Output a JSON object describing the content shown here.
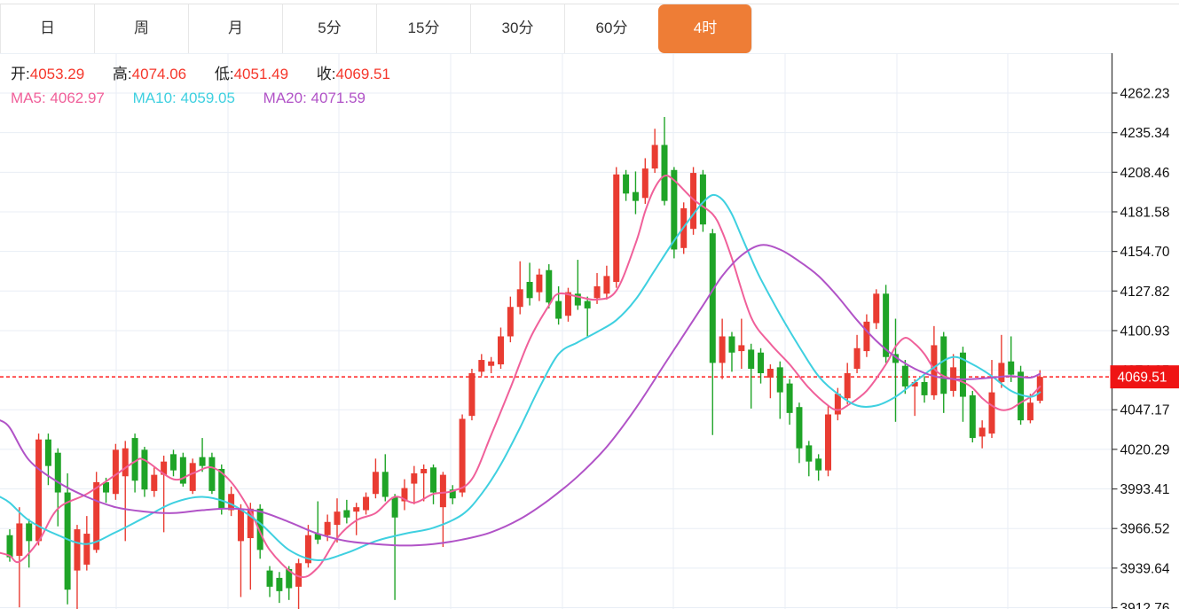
{
  "tabs": [
    {
      "label": "日",
      "active": false
    },
    {
      "label": "周",
      "active": false
    },
    {
      "label": "月",
      "active": false
    },
    {
      "label": "5分",
      "active": false
    },
    {
      "label": "15分",
      "active": false
    },
    {
      "label": "30分",
      "active": false
    },
    {
      "label": "60分",
      "active": false
    },
    {
      "label": "4时",
      "active": true
    }
  ],
  "legend": {
    "ohlc": [
      {
        "label": "开:",
        "value": "4053.29"
      },
      {
        "label": "高:",
        "value": "4074.06"
      },
      {
        "label": "低:",
        "value": "4051.49"
      },
      {
        "label": "收:",
        "value": "4069.51"
      }
    ],
    "ma": [
      {
        "label": "MA5:",
        "value": "4062.97"
      },
      {
        "label": "MA10:",
        "value": "4059.05"
      },
      {
        "label": "MA20:",
        "value": "4071.59"
      }
    ]
  },
  "colors": {
    "up_candle": "#e93c32",
    "down_candle": "#1fa427",
    "ma5": "#f0609a",
    "ma10": "#3fd0e0",
    "ma20": "#b153c7",
    "tab_active_bg": "#ee7d36",
    "price_tag_bg": "#ef1414",
    "price_line": "#ff2020",
    "grid": "#e8eef5",
    "axis": "#3f3f3f",
    "axis_text": "#111111",
    "ohlc_value": "#f5372b"
  },
  "price_tag": {
    "value": "4069.51"
  },
  "chart_data": {
    "type": "candlestick",
    "legend_position": "top-left",
    "grid": true,
    "y_axis": {
      "ticks": [
        4262.23,
        4235.34,
        4208.46,
        4181.58,
        4154.7,
        4127.82,
        4100.93,
        4074.05,
        4047.17,
        4020.29,
        3993.41,
        3966.52,
        3939.64,
        3912.76
      ],
      "tick_interval": 26.88,
      "side": "right"
    },
    "current_price": 4069.51,
    "current_candle": {
      "open": 4053.29,
      "high": 4074.06,
      "low": 4051.49,
      "close": 4069.51
    },
    "ma_values": {
      "MA5": 4062.97,
      "MA10": 4059.05,
      "MA20": 4071.59
    },
    "candles": [
      [
        3962,
        3966,
        3944,
        3947
      ],
      [
        3948,
        3981,
        3913,
        3970
      ],
      [
        3970,
        3973,
        3940,
        3958
      ],
      [
        3958,
        4031,
        3955,
        4027
      ],
      [
        4027,
        4031,
        3996,
        4009
      ],
      [
        4018,
        4021,
        3968,
        3991
      ],
      [
        3991,
        4004,
        3915,
        3925
      ],
      [
        3938,
        3969,
        3911,
        3966
      ],
      [
        3942,
        3975,
        3938,
        3963
      ],
      [
        3952,
        4005,
        3950,
        3998
      ],
      [
        3998,
        4001,
        3984,
        3991
      ],
      [
        3990,
        4024,
        3986,
        4020
      ],
      [
        4002,
        4026,
        3958,
        4021
      ],
      [
        4028,
        4031,
        3991,
        3999
      ],
      [
        4020,
        4022,
        3988,
        3993
      ],
      [
        3992,
        4008,
        3988,
        4003
      ],
      [
        4003,
        4016,
        3964,
        4012
      ],
      [
        4017,
        4020,
        4002,
        4006
      ],
      [
        4015,
        4018,
        3995,
        3997
      ],
      [
        3992,
        4014,
        3990,
        4011
      ],
      [
        4015,
        4028,
        4005,
        4009
      ],
      [
        4015,
        4018,
        3990,
        3992
      ],
      [
        4007,
        4010,
        3976,
        3980
      ],
      [
        3979,
        3995,
        3975,
        3990
      ],
      [
        3958,
        3983,
        3920,
        3980
      ],
      [
        3960,
        3984,
        3925,
        3980
      ],
      [
        3980,
        3983,
        3946,
        3952
      ],
      [
        3938,
        3941,
        3920,
        3927
      ],
      [
        3933,
        3937,
        3916,
        3924
      ],
      [
        3939,
        3941,
        3918,
        3926
      ],
      [
        3927,
        3946,
        3911,
        3943
      ],
      [
        3943,
        3969,
        3940,
        3962
      ],
      [
        3963,
        3985,
        3956,
        3959
      ],
      [
        3962,
        3976,
        3958,
        3971
      ],
      [
        3969,
        3987,
        3957,
        3978
      ],
      [
        3979,
        3986,
        3970,
        3974
      ],
      [
        3978,
        3984,
        3962,
        3981
      ],
      [
        3979,
        3991,
        3976,
        3988
      ],
      [
        3990,
        4014,
        3987,
        4005
      ],
      [
        4005,
        4017,
        3985,
        3988
      ],
      [
        3988,
        3990,
        3918,
        3974
      ],
      [
        3985,
        4000,
        3979,
        3994
      ],
      [
        3997,
        4009,
        3983,
        4004
      ],
      [
        4004,
        4010,
        3985,
        4007
      ],
      [
        4008,
        4010,
        3983,
        3991
      ],
      [
        3981,
        4005,
        3954,
        4003
      ],
      [
        3993,
        3996,
        3983,
        3987
      ],
      [
        3991,
        4044,
        3988,
        4041
      ],
      [
        4043,
        4075,
        4040,
        4072
      ],
      [
        4073,
        4085,
        4070,
        4081
      ],
      [
        4077,
        4083,
        4072,
        4080
      ],
      [
        4078,
        4103,
        4075,
        4097
      ],
      [
        4097,
        4124,
        4093,
        4117
      ],
      [
        4117,
        4148,
        4112,
        4129
      ],
      [
        4134,
        4147,
        4118,
        4123
      ],
      [
        4127,
        4143,
        4121,
        4139
      ],
      [
        4142,
        4146,
        4116,
        4120
      ],
      [
        4121,
        4131,
        4105,
        4109
      ],
      [
        4111,
        4130,
        4107,
        4127
      ],
      [
        4126,
        4149,
        4115,
        4118
      ],
      [
        4121,
        4124,
        4097,
        4116
      ],
      [
        4123,
        4140,
        4119,
        4131
      ],
      [
        4126,
        4145,
        4122,
        4138
      ],
      [
        4134,
        4212,
        4130,
        4207
      ],
      [
        4207,
        4210,
        4189,
        4194
      ],
      [
        4195,
        4209,
        4180,
        4189
      ],
      [
        4191,
        4218,
        4187,
        4211
      ],
      [
        4211,
        4238,
        4208,
        4227
      ],
      [
        4227,
        4246,
        4186,
        4189
      ],
      [
        4210,
        4212,
        4150,
        4156
      ],
      [
        4157,
        4188,
        4153,
        4184
      ],
      [
        4170,
        4212,
        4166,
        4208
      ],
      [
        4207,
        4210,
        4168,
        4173
      ],
      [
        4167,
        4170,
        4030,
        4079
      ],
      [
        4079,
        4109,
        4068,
        4097
      ],
      [
        4097,
        4100,
        4073,
        4086
      ],
      [
        4087,
        4109,
        4075,
        4091
      ],
      [
        4088,
        4092,
        4048,
        4075
      ],
      [
        4086,
        4089,
        4065,
        4072
      ],
      [
        4069,
        4078,
        4055,
        4075
      ],
      [
        4076,
        4080,
        4041,
        4059
      ],
      [
        4065,
        4068,
        4037,
        4045
      ],
      [
        4049,
        4052,
        4011,
        4021
      ],
      [
        4023,
        4026,
        4002,
        4012
      ],
      [
        4014,
        4017,
        3999,
        4006
      ],
      [
        4006,
        4050,
        4002,
        4044
      ],
      [
        4044,
        4062,
        4040,
        4058
      ],
      [
        4055,
        4079,
        4051,
        4072
      ],
      [
        4075,
        4098,
        4072,
        4089
      ],
      [
        4087,
        4112,
        4083,
        4107
      ],
      [
        4106,
        4129,
        4102,
        4126
      ],
      [
        4126,
        4132,
        4079,
        4083
      ],
      [
        4085,
        4109,
        4039,
        4079
      ],
      [
        4077,
        4081,
        4058,
        4063
      ],
      [
        4063,
        4068,
        4043,
        4066
      ],
      [
        4066,
        4070,
        4052,
        4057
      ],
      [
        4057,
        4104,
        4054,
        4091
      ],
      [
        4097,
        4100,
        4045,
        4058
      ],
      [
        4060,
        4085,
        4056,
        4076
      ],
      [
        4086,
        4090,
        4039,
        4056
      ],
      [
        4057,
        4060,
        4025,
        4028
      ],
      [
        4029,
        4040,
        4021,
        4035
      ],
      [
        4031,
        4081,
        4028,
        4059
      ],
      [
        4066,
        4098,
        4062,
        4079
      ],
      [
        4080,
        4097,
        4066,
        4071
      ],
      [
        4073,
        4077,
        4037,
        4040
      ],
      [
        4040,
        4058,
        4038,
        4052
      ],
      [
        4053.29,
        4074.06,
        4051.49,
        4069.51
      ]
    ],
    "ma_series": [
      {
        "name": "MA5",
        "points": [
          [
            -1,
            3950
          ],
          [
            0,
            3948
          ],
          [
            1,
            3944
          ],
          [
            3,
            3958
          ],
          [
            5,
            3980
          ],
          [
            8,
            3990
          ],
          [
            11,
            4003
          ],
          [
            13,
            4012
          ],
          [
            14,
            4013
          ],
          [
            17,
            4000
          ],
          [
            19,
            4004
          ],
          [
            21,
            4008
          ],
          [
            23,
            3998
          ],
          [
            25,
            3978
          ],
          [
            27,
            3952
          ],
          [
            30,
            3934
          ],
          [
            32,
            3940
          ],
          [
            34,
            3960
          ],
          [
            36,
            3972
          ],
          [
            38,
            3977
          ],
          [
            40,
            3988
          ],
          [
            42,
            3984
          ],
          [
            44,
            3990
          ],
          [
            46,
            3992
          ],
          [
            48,
            4000
          ],
          [
            50,
            4030
          ],
          [
            52,
            4062
          ],
          [
            54,
            4095
          ],
          [
            56,
            4118
          ],
          [
            57,
            4126
          ],
          [
            59,
            4124
          ],
          [
            61,
            4122
          ],
          [
            63,
            4128
          ],
          [
            65,
            4160
          ],
          [
            66,
            4182
          ],
          [
            67,
            4198
          ],
          [
            68,
            4206
          ],
          [
            69,
            4203
          ],
          [
            71,
            4190
          ],
          [
            73,
            4180
          ],
          [
            74,
            4168
          ],
          [
            75,
            4150
          ],
          [
            77,
            4110
          ],
          [
            79,
            4092
          ],
          [
            81,
            4078
          ],
          [
            83,
            4062
          ],
          [
            85,
            4050
          ],
          [
            86,
            4047
          ],
          [
            87,
            4050
          ],
          [
            89,
            4060
          ],
          [
            91,
            4078
          ],
          [
            92,
            4090
          ],
          [
            93,
            4096
          ],
          [
            94,
            4092
          ],
          [
            95,
            4085
          ],
          [
            96,
            4075
          ],
          [
            97,
            4070
          ],
          [
            98,
            4068
          ],
          [
            99,
            4066
          ],
          [
            100,
            4062
          ],
          [
            101,
            4055
          ],
          [
            102,
            4050
          ],
          [
            103,
            4047
          ],
          [
            104,
            4048
          ],
          [
            105,
            4052
          ],
          [
            106,
            4056
          ],
          [
            107,
            4062.97
          ]
        ]
      },
      {
        "name": "MA10",
        "points": [
          [
            -1,
            3988
          ],
          [
            0,
            3984
          ],
          [
            2,
            3972
          ],
          [
            5,
            3962
          ],
          [
            8,
            3956
          ],
          [
            11,
            3964
          ],
          [
            14,
            3974
          ],
          [
            17,
            3984
          ],
          [
            20,
            3988
          ],
          [
            23,
            3983
          ],
          [
            26,
            3970
          ],
          [
            29,
            3952
          ],
          [
            32,
            3945
          ],
          [
            35,
            3950
          ],
          [
            38,
            3958
          ],
          [
            41,
            3963
          ],
          [
            44,
            3967
          ],
          [
            47,
            3976
          ],
          [
            49,
            3990
          ],
          [
            51,
            4010
          ],
          [
            53,
            4035
          ],
          [
            55,
            4062
          ],
          [
            57,
            4085
          ],
          [
            59,
            4093
          ],
          [
            61,
            4100
          ],
          [
            63,
            4108
          ],
          [
            65,
            4122
          ],
          [
            67,
            4142
          ],
          [
            69,
            4162
          ],
          [
            71,
            4180
          ],
          [
            72,
            4188
          ],
          [
            73,
            4193
          ],
          [
            74,
            4190
          ],
          [
            75,
            4180
          ],
          [
            76,
            4165
          ],
          [
            77,
            4150
          ],
          [
            78,
            4136
          ],
          [
            80,
            4112
          ],
          [
            82,
            4090
          ],
          [
            84,
            4070
          ],
          [
            86,
            4058
          ],
          [
            88,
            4050
          ],
          [
            90,
            4050
          ],
          [
            92,
            4056
          ],
          [
            94,
            4066
          ],
          [
            96,
            4076
          ],
          [
            98,
            4083
          ],
          [
            100,
            4078
          ],
          [
            102,
            4070
          ],
          [
            104,
            4060
          ],
          [
            106,
            4056
          ],
          [
            107,
            4059.05
          ]
        ]
      },
      {
        "name": "MA20",
        "points": [
          [
            -1,
            4040
          ],
          [
            0,
            4035
          ],
          [
            2,
            4013
          ],
          [
            5,
            3998
          ],
          [
            8,
            3988
          ],
          [
            11,
            3981
          ],
          [
            14,
            3978
          ],
          [
            17,
            3977
          ],
          [
            20,
            3979
          ],
          [
            23,
            3980
          ],
          [
            26,
            3978
          ],
          [
            29,
            3971
          ],
          [
            32,
            3963
          ],
          [
            35,
            3958
          ],
          [
            38,
            3956
          ],
          [
            41,
            3955
          ],
          [
            44,
            3956
          ],
          [
            47,
            3959
          ],
          [
            50,
            3964
          ],
          [
            53,
            3973
          ],
          [
            56,
            3986
          ],
          [
            59,
            4002
          ],
          [
            62,
            4022
          ],
          [
            65,
            4048
          ],
          [
            68,
            4078
          ],
          [
            70,
            4098
          ],
          [
            72,
            4118
          ],
          [
            74,
            4138
          ],
          [
            76,
            4152
          ],
          [
            78,
            4159
          ],
          [
            80,
            4156
          ],
          [
            82,
            4148
          ],
          [
            84,
            4138
          ],
          [
            86,
            4124
          ],
          [
            88,
            4108
          ],
          [
            90,
            4094
          ],
          [
            92,
            4083
          ],
          [
            94,
            4075
          ],
          [
            96,
            4070
          ],
          [
            98,
            4068
          ],
          [
            100,
            4068
          ],
          [
            102,
            4069
          ],
          [
            104,
            4070
          ],
          [
            106,
            4069
          ],
          [
            107,
            4071.59
          ]
        ]
      }
    ]
  }
}
